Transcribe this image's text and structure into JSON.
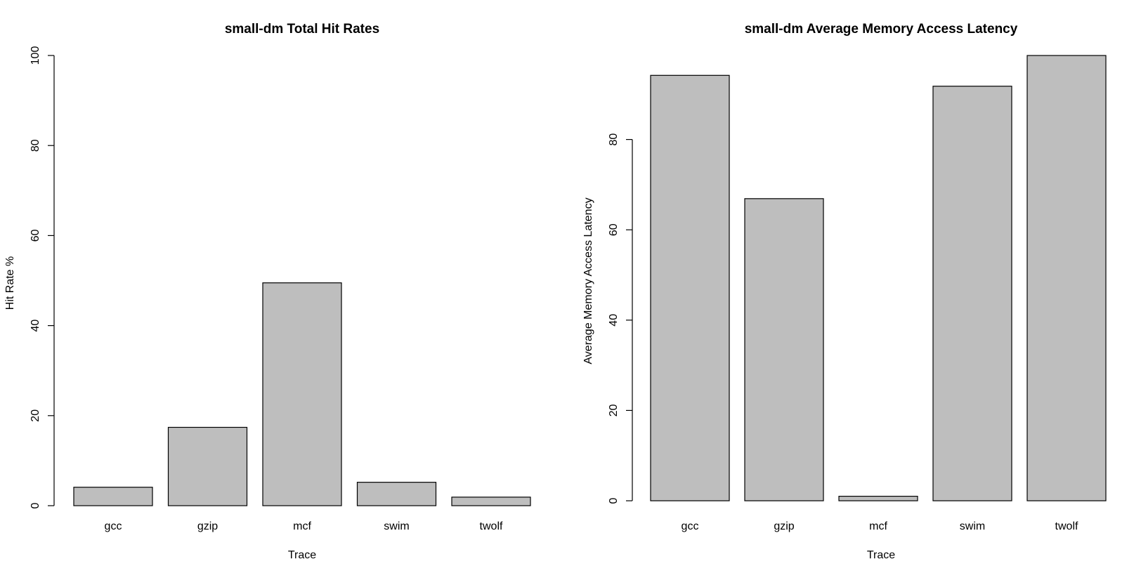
{
  "chart_data": [
    {
      "type": "bar",
      "title": "small-dm  Total Hit Rates",
      "xlabel": "Trace",
      "ylabel": "Hit Rate %",
      "categories": [
        "gcc",
        "gzip",
        "mcf",
        "swim",
        "twolf"
      ],
      "values": [
        4.1,
        17.4,
        49.5,
        5.2,
        1.9
      ],
      "yticks": [
        0,
        20,
        40,
        60,
        80,
        100
      ],
      "ylim": [
        0,
        100
      ],
      "grid": false,
      "bar_color": "#bebebe",
      "bar_border_color": "#000000"
    },
    {
      "type": "bar",
      "title": "small-dm  Average Memory Access Latency",
      "xlabel": "Trace",
      "ylabel": "Average Memory Access Latency",
      "categories": [
        "gcc",
        "gzip",
        "mcf",
        "swim",
        "twolf"
      ],
      "values": [
        94.2,
        66.9,
        1.0,
        91.8,
        98.6
      ],
      "yticks": [
        0,
        20,
        40,
        60,
        80
      ],
      "ylim": [
        0,
        98.6
      ],
      "grid": false,
      "bar_color": "#bebebe",
      "bar_border_color": "#000000"
    }
  ]
}
